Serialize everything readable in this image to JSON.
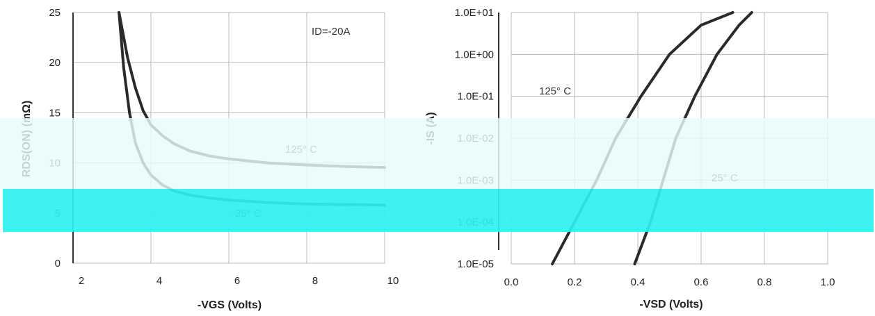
{
  "chart_data": [
    {
      "type": "line",
      "title": "",
      "xlabel": "-VGS (Volts)",
      "ylabel": "RDS(ON) (mΩ)",
      "xlim": [
        2,
        10
      ],
      "ylim": [
        0,
        25
      ],
      "x_ticks": [
        "2",
        "4",
        "6",
        "8",
        "10"
      ],
      "y_ticks": [
        "0",
        "5",
        "10",
        "15",
        "20",
        "25"
      ],
      "grid": true,
      "annotations": [
        "ID=-20A"
      ],
      "series": [
        {
          "name": "125° C",
          "x": [
            3.18,
            3.4,
            3.6,
            3.8,
            4.0,
            4.3,
            4.6,
            5.0,
            5.5,
            6.0,
            7.0,
            8.0,
            9.0,
            10.0
          ],
          "y": [
            25.0,
            20.5,
            17.5,
            15.2,
            13.8,
            12.7,
            11.9,
            11.2,
            10.7,
            10.4,
            10.0,
            9.8,
            9.65,
            9.55
          ]
        },
        {
          "name": "25° C",
          "x": [
            3.18,
            3.3,
            3.45,
            3.6,
            3.8,
            4.0,
            4.3,
            4.6,
            5.0,
            5.5,
            6.0,
            7.0,
            8.0,
            9.0,
            10.0
          ],
          "y": [
            25.0,
            19.5,
            15.0,
            12.0,
            10.0,
            8.8,
            7.8,
            7.2,
            6.8,
            6.5,
            6.3,
            6.05,
            5.9,
            5.85,
            5.8
          ]
        }
      ]
    },
    {
      "type": "line",
      "title": "",
      "xlabel": "-VSD (Volts)",
      "ylabel": "-IS (A)",
      "xlim": [
        0.0,
        1.0
      ],
      "ylim": [
        1e-05,
        10
      ],
      "yscale": "log",
      "x_ticks": [
        "0.0",
        "0.2",
        "0.4",
        "0.6",
        "0.8",
        "1.0"
      ],
      "y_ticks": [
        "1.0E-05",
        "1.0E-04",
        "1.0E-03",
        "1.0E-02",
        "1.0E-01",
        "1.0E+00",
        "1.0E+01"
      ],
      "grid": true,
      "series": [
        {
          "name": "125° C",
          "x": [
            0.13,
            0.2,
            0.27,
            0.33,
            0.41,
            0.5,
            0.6,
            0.7
          ],
          "y": [
            1e-05,
            0.0001,
            0.001,
            0.01,
            0.1,
            1,
            5,
            10
          ]
        },
        {
          "name": "25° C",
          "x": [
            0.39,
            0.44,
            0.48,
            0.52,
            0.58,
            0.65,
            0.72,
            0.76
          ],
          "y": [
            1e-05,
            0.0001,
            0.001,
            0.01,
            0.1,
            1,
            5,
            10
          ]
        }
      ]
    }
  ]
}
